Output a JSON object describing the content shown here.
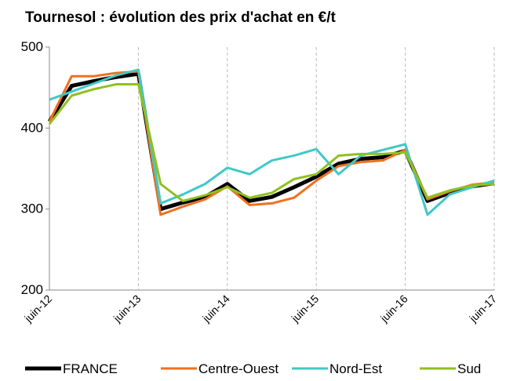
{
  "chart_data": {
    "type": "line",
    "title": "Tournesol : évolution des prix d'achat en €/t",
    "categories": [
      "juin-12",
      null,
      null,
      null,
      "juin-13",
      null,
      null,
      null,
      "juin-14",
      null,
      null,
      null,
      "juin-15",
      null,
      null,
      null,
      "juin-16",
      null,
      null,
      null,
      "juin-17"
    ],
    "series": [
      {
        "name": "FRANCE",
        "color": "#000000",
        "values": [
          408,
          452,
          458,
          463,
          467,
          300,
          308,
          315,
          331,
          310,
          315,
          327,
          340,
          356,
          362,
          364,
          372,
          310,
          320,
          328,
          332
        ]
      },
      {
        "name": "Centre-Ouest",
        "color": "#f07020",
        "values": [
          408,
          464,
          464,
          468,
          470,
          293,
          303,
          312,
          328,
          305,
          307,
          314,
          335,
          353,
          358,
          360,
          373,
          312,
          322,
          330,
          333
        ]
      },
      {
        "name": "Nord-Est",
        "color": "#40c8c8",
        "values": [
          435,
          445,
          455,
          465,
          472,
          307,
          318,
          331,
          351,
          343,
          360,
          366,
          374,
          343,
          366,
          373,
          380,
          293,
          318,
          327,
          335
        ]
      },
      {
        "name": "Sud",
        "color": "#90c020",
        "values": [
          405,
          440,
          448,
          454,
          454,
          331,
          310,
          317,
          327,
          314,
          320,
          337,
          343,
          366,
          368,
          368,
          370,
          314,
          323,
          329,
          331
        ]
      }
    ],
    "ylim": [
      200,
      500
    ],
    "yticks": [
      200,
      300,
      400,
      500
    ],
    "legend": "bottom"
  }
}
